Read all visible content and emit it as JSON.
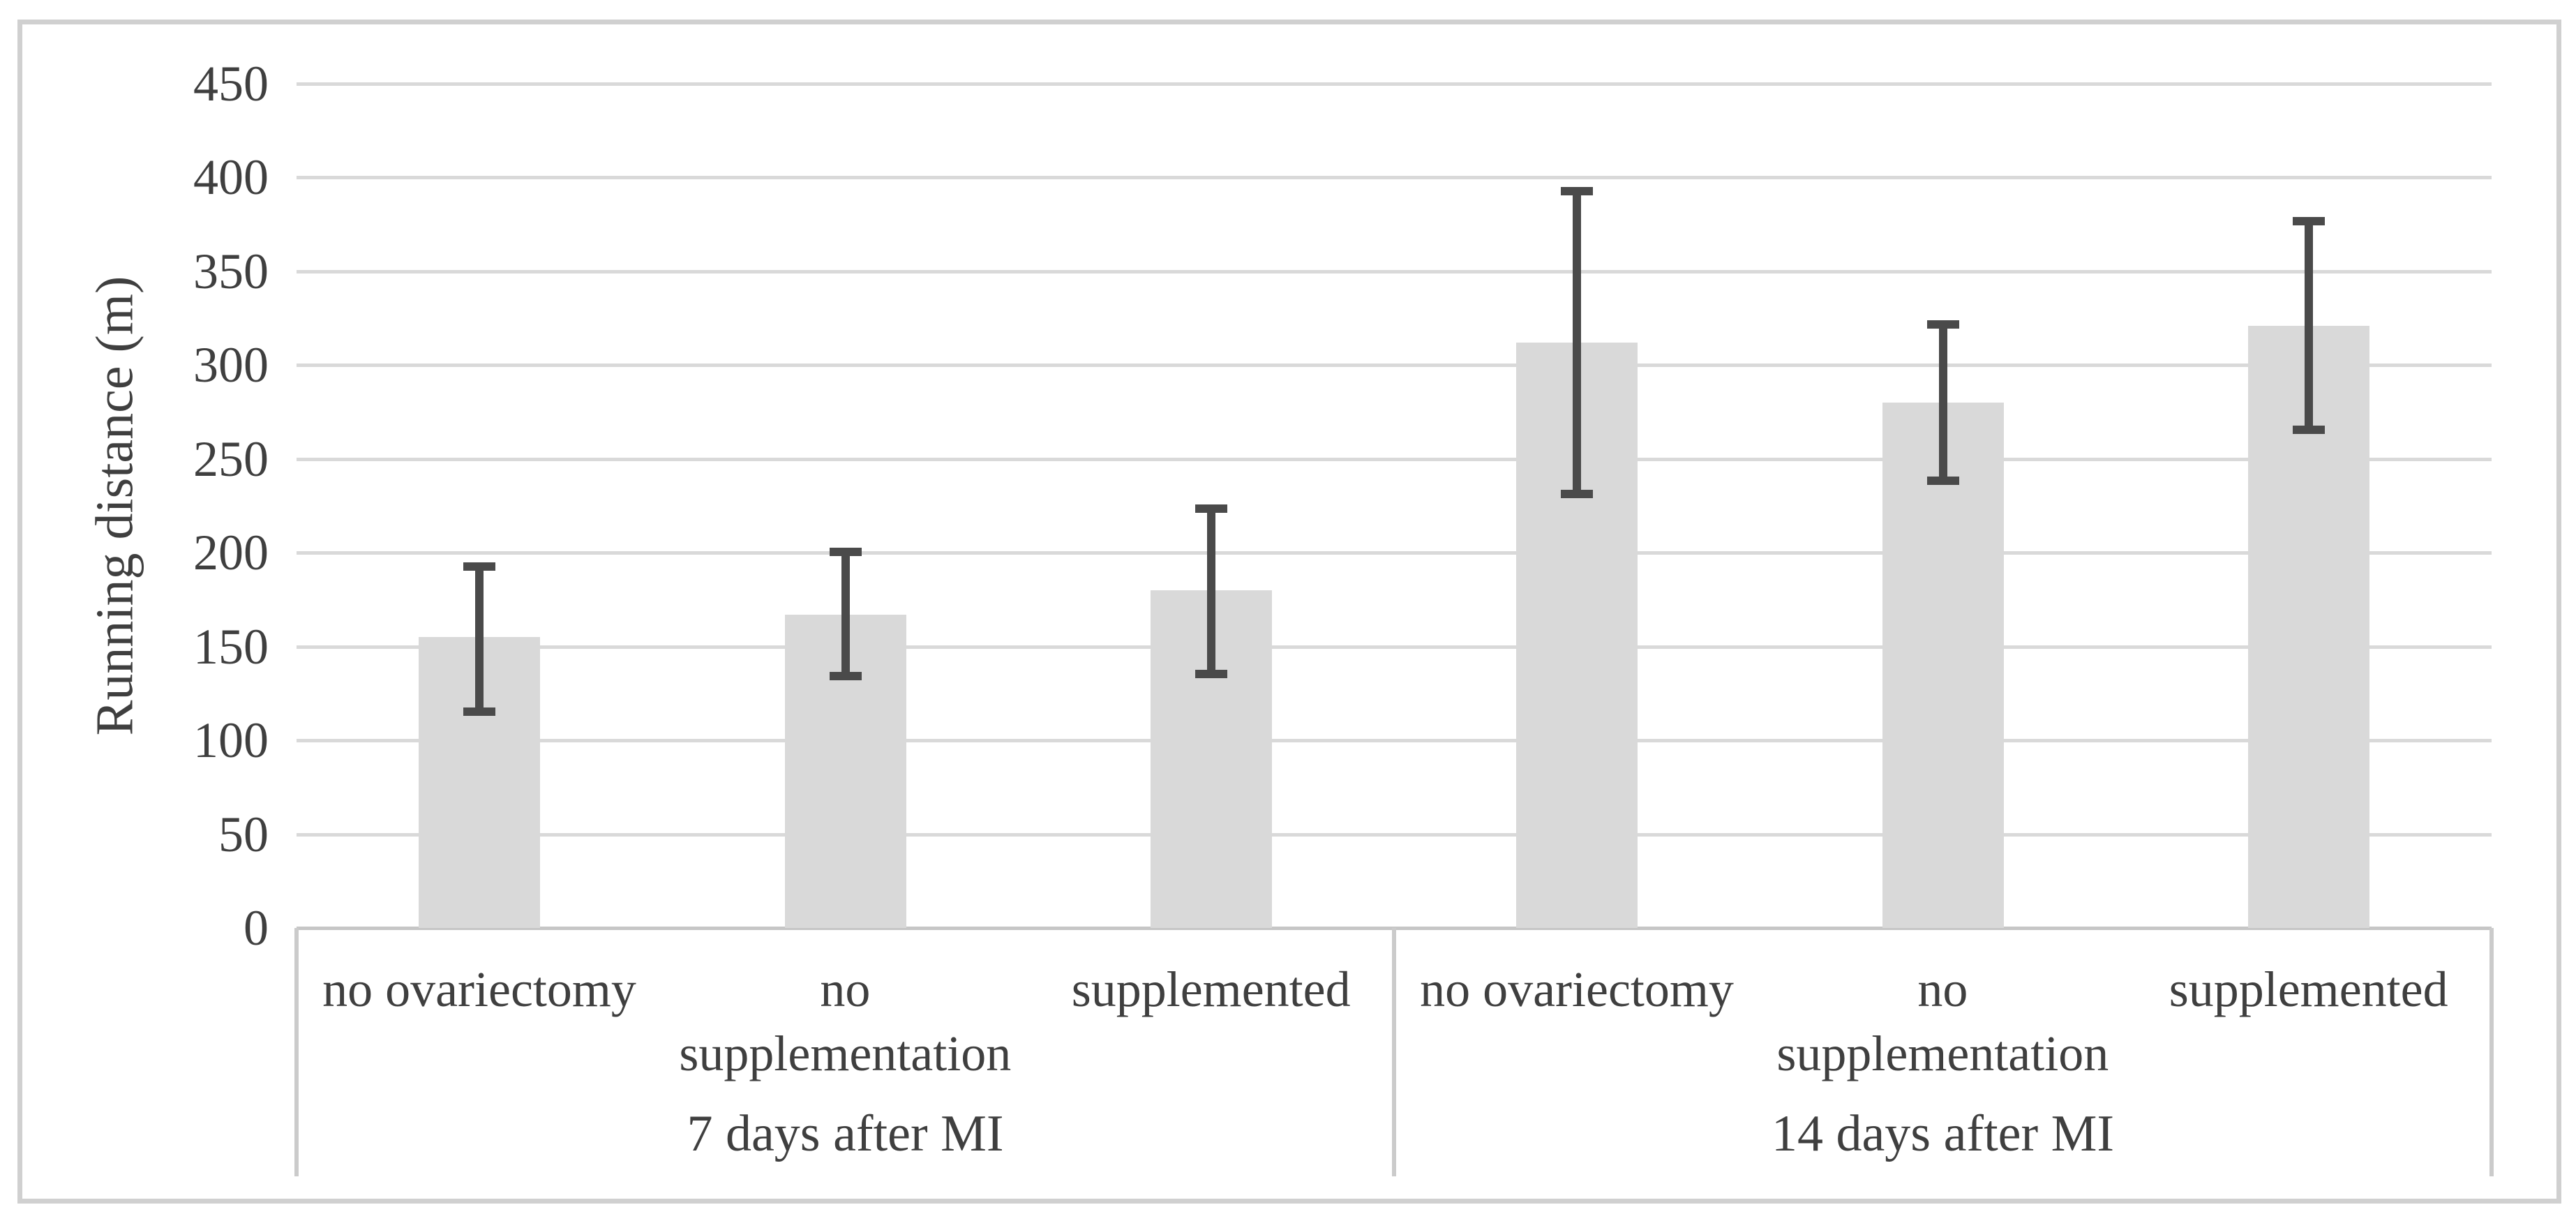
{
  "figure": {
    "background": "#ffffff",
    "border_color": "#d0d0d0"
  },
  "chart_data": {
    "type": "bar",
    "title": "",
    "xlabel": "",
    "ylabel": "Running distance (m)",
    "ylim": [
      0,
      450
    ],
    "yticks": [
      0,
      50,
      100,
      150,
      200,
      250,
      300,
      350,
      400,
      450
    ],
    "grid": true,
    "legend": false,
    "group_labels": [
      "7 days after MI",
      "14 days after MI"
    ],
    "categories": [
      "no ovariectomy",
      "no supplementation",
      "supplemented",
      "no ovariectomy",
      "no supplementation",
      "supplemented"
    ],
    "values": [
      155,
      167,
      180,
      312,
      280,
      321
    ],
    "error_upper": [
      193,
      201,
      224,
      393,
      322,
      377
    ],
    "error_lower": [
      115,
      134,
      135,
      231,
      238,
      265
    ],
    "bar_color": "#d9d9d9",
    "error_color": "#4a4a4a",
    "gridline_color": "#d9d9d9",
    "axis_line_color": "#c6c6c6",
    "divider_color": "#cbcbcb",
    "text_color": "#3f3f3f"
  }
}
